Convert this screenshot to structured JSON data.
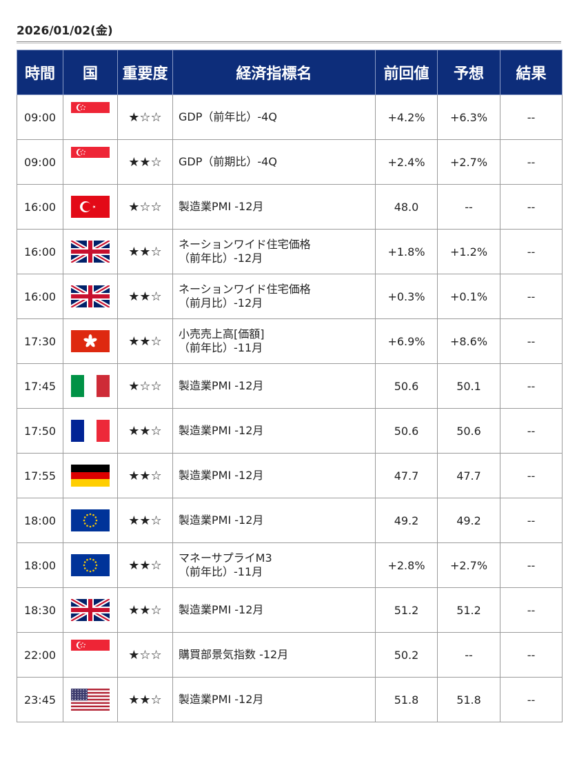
{
  "date": "2026/01/02(金)",
  "headers": [
    "時間",
    "国",
    "重要度",
    "経済指標名",
    "前回値",
    "予想",
    "結果"
  ],
  "rows": [
    {
      "time": "09:00",
      "flag": "singapore-flag",
      "stars": "★☆☆",
      "name": [
        "GDP（前年比）-4Q"
      ],
      "prev": "+4.2%",
      "forecast": "+6.3%",
      "result": "--"
    },
    {
      "time": "09:00",
      "flag": "singapore-flag",
      "stars": "★★☆",
      "name": [
        "GDP（前期比）-4Q"
      ],
      "prev": "+2.4%",
      "forecast": "+2.7%",
      "result": "--"
    },
    {
      "time": "16:00",
      "flag": "turkey-flag",
      "stars": "★☆☆",
      "name": [
        "製造業PMI -12月"
      ],
      "prev": "48.0",
      "forecast": "--",
      "result": "--"
    },
    {
      "time": "16:00",
      "flag": "uk-flag",
      "stars": "★★☆",
      "name": [
        "ネーションワイド住宅価格",
        "（前年比）-12月"
      ],
      "prev": "+1.8%",
      "forecast": "+1.2%",
      "result": "--"
    },
    {
      "time": "16:00",
      "flag": "uk-flag",
      "stars": "★★☆",
      "name": [
        "ネーションワイド住宅価格",
        "（前月比）-12月"
      ],
      "prev": "+0.3%",
      "forecast": "+0.1%",
      "result": "--"
    },
    {
      "time": "17:30",
      "flag": "hongkong-flag",
      "stars": "★★☆",
      "name": [
        "小売売上高[価額]",
        "（前年比）-11月"
      ],
      "prev": "+6.9%",
      "forecast": "+8.6%",
      "result": "--"
    },
    {
      "time": "17:45",
      "flag": "italy-flag",
      "stars": "★☆☆",
      "name": [
        "製造業PMI -12月"
      ],
      "prev": "50.6",
      "forecast": "50.1",
      "result": "--"
    },
    {
      "time": "17:50",
      "flag": "france-flag",
      "stars": "★★☆",
      "name": [
        "製造業PMI -12月"
      ],
      "prev": "50.6",
      "forecast": "50.6",
      "result": "--"
    },
    {
      "time": "17:55",
      "flag": "germany-flag",
      "stars": "★★☆",
      "name": [
        "製造業PMI -12月"
      ],
      "prev": "47.7",
      "forecast": "47.7",
      "result": "--"
    },
    {
      "time": "18:00",
      "flag": "eu-flag",
      "stars": "★★☆",
      "name": [
        "製造業PMI -12月"
      ],
      "prev": "49.2",
      "forecast": "49.2",
      "result": "--"
    },
    {
      "time": "18:00",
      "flag": "eu-flag",
      "stars": "★★☆",
      "name": [
        "マネーサプライM3",
        "（前年比）-11月"
      ],
      "prev": "+2.8%",
      "forecast": "+2.7%",
      "result": "--"
    },
    {
      "time": "18:30",
      "flag": "uk-flag",
      "stars": "★★☆",
      "name": [
        "製造業PMI -12月"
      ],
      "prev": "51.2",
      "forecast": "51.2",
      "result": "--"
    },
    {
      "time": "22:00",
      "flag": "singapore-flag",
      "stars": "★☆☆",
      "name": [
        "購買部景気指数 -12月"
      ],
      "prev": "50.2",
      "forecast": "--",
      "result": "--"
    },
    {
      "time": "23:45",
      "flag": "usa-flag",
      "stars": "★★☆",
      "name": [
        "製造業PMI -12月"
      ],
      "prev": "51.8",
      "forecast": "51.8",
      "result": "--"
    }
  ]
}
